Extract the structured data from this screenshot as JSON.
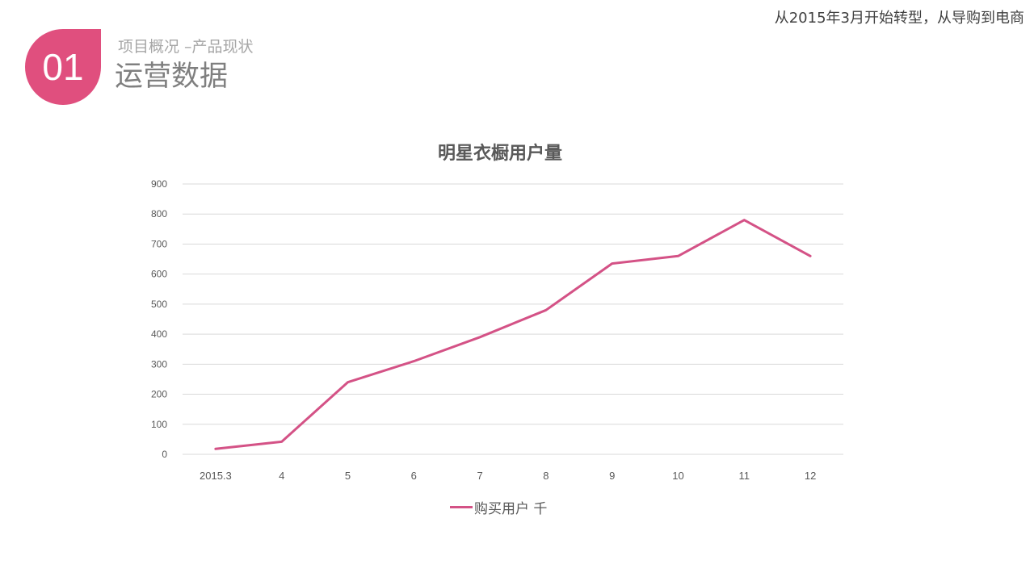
{
  "header": {
    "note": "从2015年3月开始转型，从导购到电商",
    "badge_number": "01",
    "subtitle": "项目概况 –产品现状",
    "title": "运营数据"
  },
  "colors": {
    "accent": "#e04f7e",
    "series_line": "#d45286",
    "grid": "#d9d9d9",
    "tick_text": "#595959"
  },
  "chart_data": {
    "type": "line",
    "title": "明星衣橱用户量",
    "categories": [
      "2015.3",
      "4",
      "5",
      "6",
      "7",
      "8",
      "9",
      "10",
      "11",
      "12"
    ],
    "series": [
      {
        "name": "购买用户 千",
        "values": [
          18,
          42,
          240,
          310,
          390,
          480,
          635,
          660,
          780,
          660
        ]
      }
    ],
    "yticks": [
      "0",
      "100",
      "200",
      "300",
      "400",
      "500",
      "600",
      "700",
      "800",
      "900"
    ],
    "ylim": [
      0,
      900
    ],
    "xlabel": "",
    "ylabel": "",
    "grid": true,
    "legend_position": "bottom"
  }
}
